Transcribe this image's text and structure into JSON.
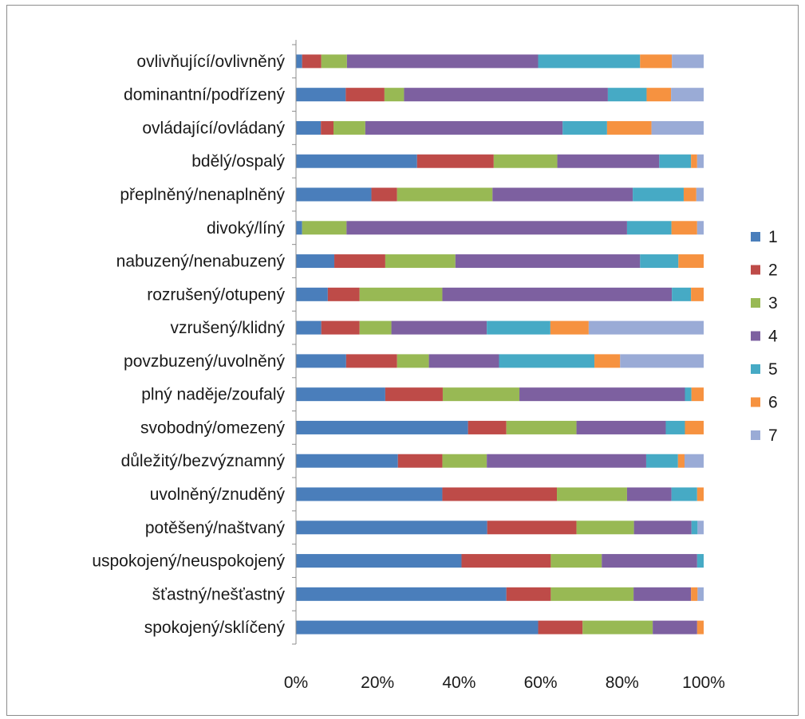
{
  "chart_data": {
    "type": "bar",
    "orientation": "horizontal",
    "stacked": "percent",
    "title": "",
    "xlabel": "",
    "ylabel": "",
    "xlim": [
      0,
      100
    ],
    "grid": false,
    "legend_position": "right",
    "x_ticks": [
      "0%",
      "20%",
      "40%",
      "60%",
      "80%",
      "100%"
    ],
    "categories": [
      "ovlivňující/ovlivněný",
      "dominantní/podřízený",
      "ovládající/ovládaný",
      "bdělý/ospalý",
      "přeplněný/nenaplněný",
      "divoký/líný",
      "nabuzený/nenabuzený",
      "rozrušený/otupený",
      "vzrušený/klidný",
      "povzbuzený/uvolněný",
      "plný naděje/zoufalý",
      "svobodný/omezený",
      "důležitý/bezvýznamný",
      "uvolněný/znuděný",
      "potěšený/naštvaný",
      "uspokojený/neuspokojený",
      "šťastný/nešťastný",
      "spokojený/sklíčený"
    ],
    "series": [
      {
        "name": "1",
        "color": "#4a7ebb",
        "values": [
          1.5,
          12.2,
          6.1,
          29.7,
          18.5,
          1.5,
          9.4,
          7.8,
          6.2,
          12.3,
          21.9,
          42.2,
          25.0,
          35.9,
          46.9,
          40.6,
          51.6,
          59.4
        ]
      },
      {
        "name": "2",
        "color": "#be4b48",
        "values": [
          4.7,
          9.5,
          3.1,
          18.8,
          6.3,
          0.0,
          12.5,
          7.8,
          9.4,
          12.5,
          14.1,
          9.4,
          10.9,
          28.1,
          21.9,
          21.9,
          10.9,
          10.9
        ]
      },
      {
        "name": "3",
        "color": "#98b954",
        "values": [
          6.3,
          4.8,
          7.8,
          15.6,
          23.4,
          10.9,
          17.2,
          20.3,
          7.8,
          7.8,
          18.8,
          17.2,
          10.9,
          17.2,
          14.1,
          12.5,
          20.3,
          17.2
        ]
      },
      {
        "name": "4",
        "color": "#7d60a0",
        "values": [
          46.9,
          50.0,
          48.4,
          25.0,
          34.4,
          68.8,
          45.3,
          56.3,
          23.4,
          17.2,
          40.6,
          21.9,
          39.1,
          10.9,
          14.1,
          23.4,
          14.1,
          10.9
        ]
      },
      {
        "name": "5",
        "color": "#46aac5",
        "values": [
          25.0,
          9.5,
          10.9,
          7.8,
          12.5,
          10.9,
          9.4,
          4.7,
          15.6,
          23.4,
          1.6,
          4.7,
          7.8,
          6.3,
          1.5,
          1.6,
          0.0,
          0.0
        ]
      },
      {
        "name": "6",
        "color": "#f69240",
        "values": [
          7.8,
          6.0,
          10.9,
          1.5,
          3.1,
          6.3,
          6.2,
          3.1,
          9.4,
          6.3,
          3.0,
          4.6,
          1.6,
          1.6,
          0.0,
          0.0,
          1.6,
          1.6
        ]
      },
      {
        "name": "7",
        "color": "#9aabd6",
        "values": [
          7.8,
          8.0,
          12.8,
          1.6,
          1.8,
          1.6,
          0.0,
          0.0,
          28.2,
          20.5,
          0.0,
          0.0,
          4.7,
          0.0,
          1.5,
          0.0,
          1.5,
          0.0
        ]
      }
    ]
  }
}
